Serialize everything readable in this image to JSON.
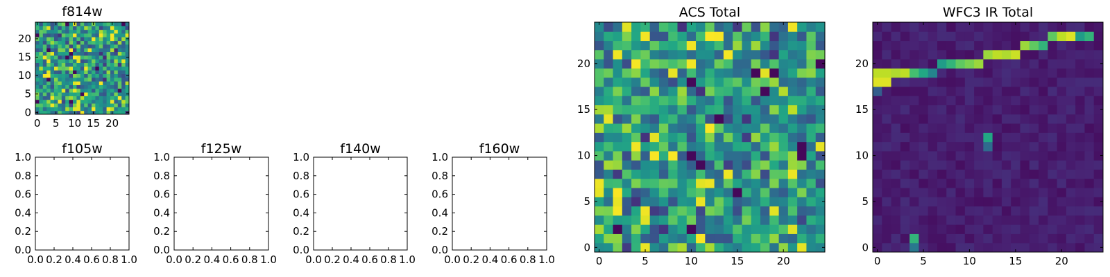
{
  "chart_data": [
    {
      "id": "f814w",
      "type": "heatmap",
      "title": "f814w",
      "colormap": "viridis",
      "size": 25,
      "xlim": [
        -0.5,
        24.5
      ],
      "ylim": [
        -0.5,
        24.5
      ],
      "xticks": [
        0,
        5,
        10,
        15,
        20
      ],
      "yticks": [
        0,
        5,
        10,
        15,
        20
      ],
      "xticklabels": [
        "0",
        "5",
        "10",
        "15",
        "20"
      ],
      "yticklabels": [
        "0",
        "5",
        "10",
        "15",
        "20"
      ],
      "pattern": "acs-noise",
      "seed": 11
    },
    {
      "id": "f105w",
      "type": "empty",
      "title": "f105w",
      "xlim": [
        0,
        1
      ],
      "ylim": [
        0,
        1
      ],
      "xticklabels": [
        "0.0",
        "0.2",
        "0.4",
        "0.6",
        "0.8",
        "1.0"
      ],
      "yticklabels": [
        "0.0",
        "0.2",
        "0.4",
        "0.6",
        "0.8",
        "1.0"
      ]
    },
    {
      "id": "f125w",
      "type": "empty",
      "title": "f125w",
      "xlim": [
        0,
        1
      ],
      "ylim": [
        0,
        1
      ],
      "xticklabels": [
        "0.0",
        "0.2",
        "0.4",
        "0.6",
        "0.8",
        "1.0"
      ],
      "yticklabels": [
        "0.0",
        "0.2",
        "0.4",
        "0.6",
        "0.8",
        "1.0"
      ]
    },
    {
      "id": "f140w",
      "type": "empty",
      "title": "f140w",
      "xlim": [
        0,
        1
      ],
      "ylim": [
        0,
        1
      ],
      "xticklabels": [
        "0.0",
        "0.2",
        "0.4",
        "0.6",
        "0.8",
        "1.0"
      ],
      "yticklabels": [
        "0.0",
        "0.2",
        "0.4",
        "0.6",
        "0.8",
        "1.0"
      ]
    },
    {
      "id": "f160w",
      "type": "empty",
      "title": "f160w",
      "xlim": [
        0,
        1
      ],
      "ylim": [
        0,
        1
      ],
      "xticklabels": [
        "0.0",
        "0.2",
        "0.4",
        "0.6",
        "0.8",
        "1.0"
      ],
      "yticklabels": [
        "0.0",
        "0.2",
        "0.4",
        "0.6",
        "0.8",
        "1.0"
      ]
    },
    {
      "id": "acs-total",
      "type": "heatmap",
      "title": "ACS Total",
      "colormap": "viridis",
      "size": 25,
      "xlim": [
        -0.5,
        24.5
      ],
      "ylim": [
        -0.5,
        24.5
      ],
      "xticks": [
        0,
        5,
        10,
        15,
        20
      ],
      "yticks": [
        0,
        5,
        10,
        15,
        20
      ],
      "xticklabels": [
        "0",
        "5",
        "10",
        "15",
        "20"
      ],
      "yticklabels": [
        "0",
        "5",
        "10",
        "15",
        "20"
      ],
      "pattern": "acs-noise",
      "seed": 29
    },
    {
      "id": "wfc3-ir-total",
      "type": "heatmap",
      "title": "WFC3 IR Total",
      "colormap": "viridis",
      "size": 25,
      "xlim": [
        -0.5,
        24.5
      ],
      "ylim": [
        -0.5,
        24.5
      ],
      "xticks": [
        0,
        5,
        10,
        15,
        20
      ],
      "yticks": [
        0,
        5,
        10,
        15,
        20
      ],
      "xticklabels": [
        "0",
        "5",
        "10",
        "15",
        "20"
      ],
      "yticklabels": [
        "0",
        "5",
        "10",
        "15",
        "20"
      ],
      "pattern": "ir-streak",
      "seed": 7,
      "features": {
        "streak": [
          [
            0,
            18,
            0.95
          ],
          [
            1,
            18,
            0.95
          ],
          [
            0,
            19,
            0.9
          ],
          [
            1,
            19,
            0.9
          ],
          [
            2,
            19,
            0.88
          ],
          [
            3,
            19,
            0.9
          ],
          [
            4,
            19,
            0.7
          ],
          [
            5,
            19,
            0.6
          ],
          [
            6,
            19,
            0.45
          ],
          [
            7,
            20,
            0.55
          ],
          [
            8,
            20,
            0.65
          ],
          [
            9,
            20,
            0.75
          ],
          [
            10,
            20,
            0.8
          ],
          [
            11,
            20,
            0.85
          ],
          [
            12,
            21,
            0.85
          ],
          [
            13,
            21,
            0.9
          ],
          [
            14,
            21,
            0.88
          ],
          [
            15,
            21,
            0.92
          ],
          [
            16,
            22,
            0.85
          ],
          [
            17,
            22,
            0.75
          ],
          [
            18,
            22,
            0.65
          ],
          [
            19,
            23,
            0.75
          ],
          [
            20,
            23,
            0.9
          ],
          [
            21,
            23,
            0.95
          ],
          [
            22,
            23,
            0.55
          ],
          [
            23,
            23,
            0.65
          ],
          [
            0,
            17,
            0.3
          ]
        ],
        "spots": [
          [
            12,
            12,
            0.6
          ],
          [
            12,
            11,
            0.35
          ],
          [
            4,
            1,
            0.65
          ],
          [
            4,
            0,
            0.4
          ]
        ]
      }
    }
  ]
}
